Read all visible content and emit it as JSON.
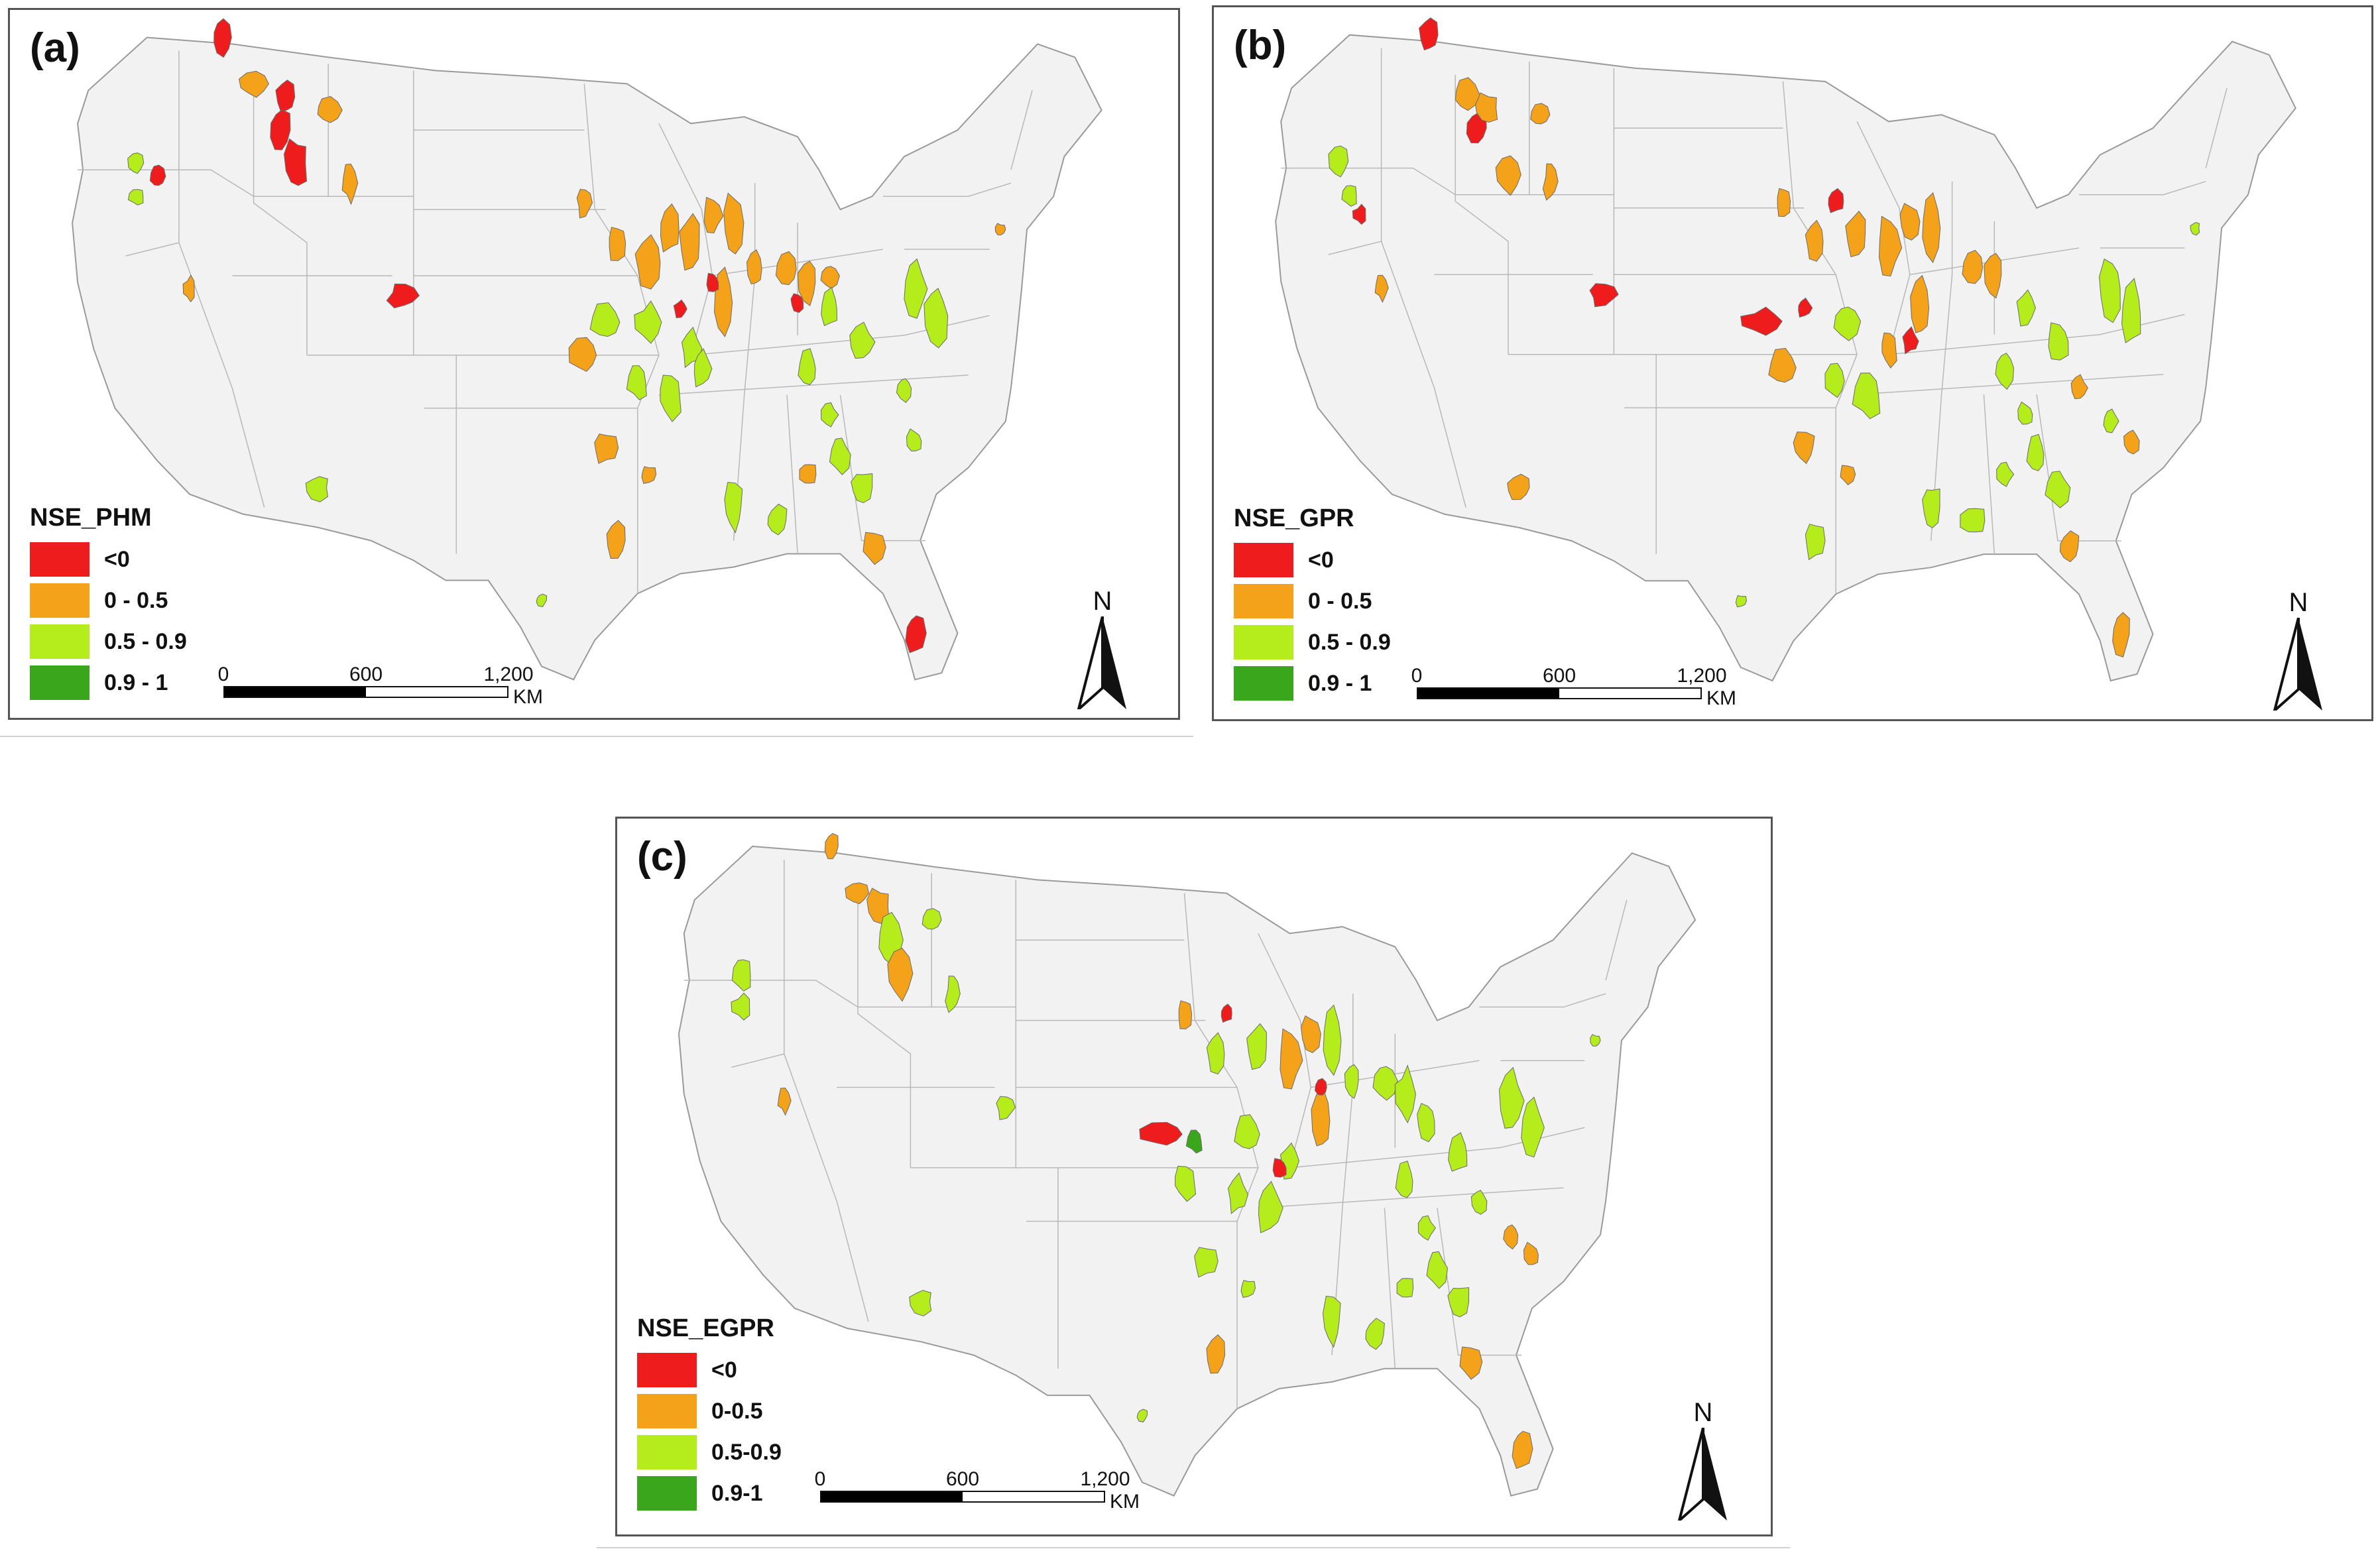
{
  "legend_categories": [
    {
      "color": "#ee1c1c"
    },
    {
      "color": "#f4a21a"
    },
    {
      "color": "#b4ec1c"
    },
    {
      "color": "#3aa61b"
    }
  ],
  "panels": [
    {
      "label": "(a)",
      "legend_title": "NSE_PHM",
      "legend_labels": [
        "<0",
        "0 - 0.5",
        "0.5 - 0.9",
        "0.9 - 1"
      ],
      "scale": {
        "ticks": [
          "0",
          "600",
          "1,200"
        ],
        "unit": "KM"
      },
      "north": "N"
    },
    {
      "label": "(b)",
      "legend_title": "NSE_GPR",
      "legend_labels": [
        "<0",
        "0 - 0.5",
        "0.5 - 0.9",
        "0.9 - 1"
      ],
      "scale": {
        "ticks": [
          "0",
          "600",
          "1,200"
        ],
        "unit": "KM"
      },
      "north": "N"
    },
    {
      "label": "(c)",
      "legend_title": "NSE_EGPR",
      "legend_labels": [
        "<0",
        "0-0.5",
        "0.5-0.9",
        "0.9-1"
      ],
      "scale": {
        "ticks": [
          "0",
          "600",
          "1,200"
        ],
        "unit": "KM"
      },
      "north": "N"
    }
  ],
  "map_colors": {
    "land": "#f2f2f2",
    "border": "#b8b8b8",
    "outline": "#9a9a9a",
    "frame": "#555555"
  }
}
